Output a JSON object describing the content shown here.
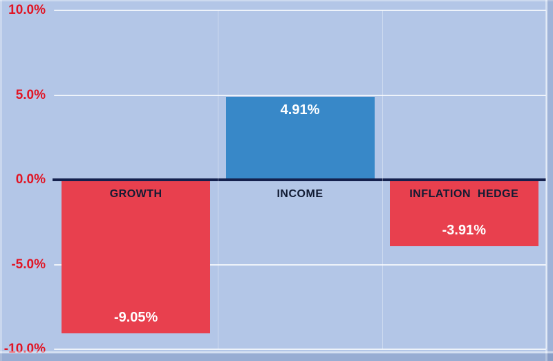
{
  "chart_data": {
    "type": "bar",
    "title": "",
    "categories": [
      "GROWTH",
      "INCOME",
      "INFLATION  HEDGE"
    ],
    "values": [
      -9.05,
      4.91,
      -3.91
    ],
    "value_labels": [
      "-9.05%",
      "4.91%",
      "-3.91%"
    ],
    "bar_colors": [
      "#e8404e",
      "#3888c8",
      "#e8404e"
    ],
    "ylim": [
      -10,
      10
    ],
    "yticks": [
      10,
      5,
      0,
      -5,
      -10
    ],
    "ytick_labels": [
      "10.0%",
      "5.0%",
      "0.0%",
      "-5.0%",
      "-10.0%"
    ],
    "grid": true,
    "legend": "none",
    "xlabel": "",
    "ylabel": "",
    "colors": {
      "background": "#b3c6e7",
      "gridline": "#e9eff9",
      "zero_line": "#14204d",
      "axis_tick_label": "#e11423",
      "category_label": "#111b33",
      "value_label": "#ffffff"
    }
  }
}
